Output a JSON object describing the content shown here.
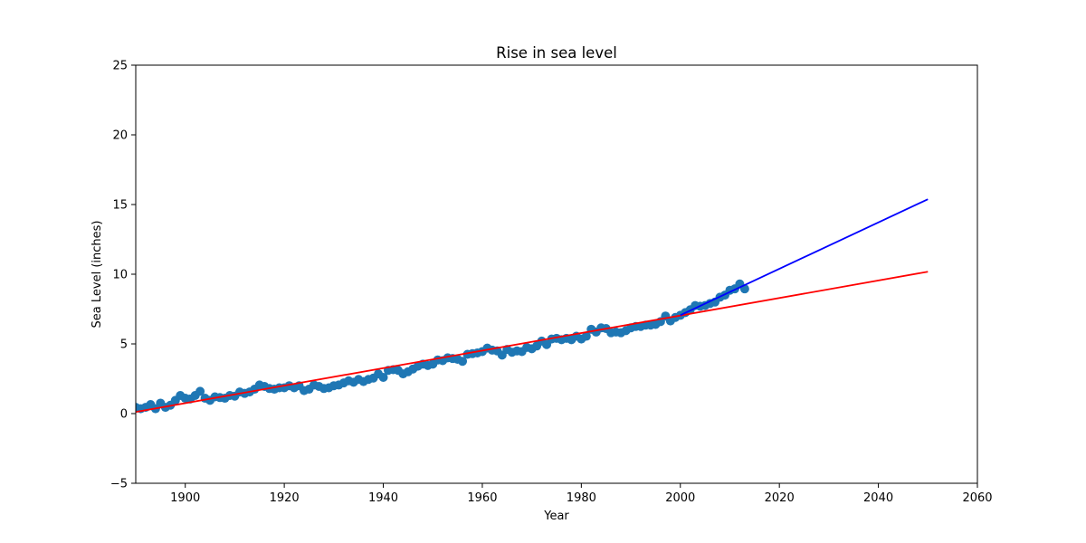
{
  "chart_data": {
    "type": "scatter",
    "title": "Rise in sea level",
    "xlabel": "Year",
    "ylabel": "Sea Level (inches)",
    "xlim": [
      1890,
      2060
    ],
    "ylim": [
      -5,
      25
    ],
    "x_ticks": [
      1900,
      1920,
      1940,
      1960,
      1980,
      2000,
      2020,
      2040,
      2060
    ],
    "y_ticks": [
      -5,
      0,
      5,
      10,
      15,
      20,
      25
    ],
    "grid": false,
    "legend": "none",
    "series": [
      {
        "kind": "scatter",
        "color": "#1f77b4",
        "points": [
          [
            1890,
            0.45
          ],
          [
            1891,
            0.35
          ],
          [
            1892,
            0.45
          ],
          [
            1893,
            0.65
          ],
          [
            1894,
            0.35
          ],
          [
            1895,
            0.75
          ],
          [
            1896,
            0.45
          ],
          [
            1897,
            0.6
          ],
          [
            1898,
            0.95
          ],
          [
            1899,
            1.3
          ],
          [
            1900,
            1.1
          ],
          [
            1901,
            1.05
          ],
          [
            1902,
            1.3
          ],
          [
            1903,
            1.6
          ],
          [
            1904,
            1.1
          ],
          [
            1905,
            0.95
          ],
          [
            1906,
            1.2
          ],
          [
            1907,
            1.15
          ],
          [
            1908,
            1.1
          ],
          [
            1909,
            1.3
          ],
          [
            1910,
            1.25
          ],
          [
            1911,
            1.55
          ],
          [
            1912,
            1.45
          ],
          [
            1913,
            1.55
          ],
          [
            1914,
            1.75
          ],
          [
            1915,
            2.05
          ],
          [
            1916,
            1.95
          ],
          [
            1917,
            1.8
          ],
          [
            1918,
            1.75
          ],
          [
            1919,
            1.85
          ],
          [
            1920,
            1.85
          ],
          [
            1921,
            2.0
          ],
          [
            1922,
            1.85
          ],
          [
            1923,
            2.0
          ],
          [
            1924,
            1.65
          ],
          [
            1925,
            1.75
          ],
          [
            1926,
            2.05
          ],
          [
            1927,
            1.95
          ],
          [
            1928,
            1.8
          ],
          [
            1929,
            1.85
          ],
          [
            1930,
            2.0
          ],
          [
            1931,
            2.05
          ],
          [
            1932,
            2.2
          ],
          [
            1933,
            2.35
          ],
          [
            1934,
            2.25
          ],
          [
            1935,
            2.45
          ],
          [
            1936,
            2.3
          ],
          [
            1937,
            2.45
          ],
          [
            1938,
            2.55
          ],
          [
            1939,
            2.85
          ],
          [
            1940,
            2.6
          ],
          [
            1941,
            3.1
          ],
          [
            1942,
            3.15
          ],
          [
            1943,
            3.1
          ],
          [
            1944,
            2.85
          ],
          [
            1945,
            3.0
          ],
          [
            1946,
            3.2
          ],
          [
            1947,
            3.4
          ],
          [
            1948,
            3.55
          ],
          [
            1949,
            3.45
          ],
          [
            1950,
            3.55
          ],
          [
            1951,
            3.85
          ],
          [
            1952,
            3.8
          ],
          [
            1953,
            4.0
          ],
          [
            1954,
            3.95
          ],
          [
            1955,
            3.9
          ],
          [
            1956,
            3.75
          ],
          [
            1957,
            4.25
          ],
          [
            1958,
            4.3
          ],
          [
            1959,
            4.35
          ],
          [
            1960,
            4.45
          ],
          [
            1961,
            4.7
          ],
          [
            1962,
            4.55
          ],
          [
            1963,
            4.5
          ],
          [
            1964,
            4.2
          ],
          [
            1965,
            4.6
          ],
          [
            1966,
            4.4
          ],
          [
            1967,
            4.5
          ],
          [
            1968,
            4.45
          ],
          [
            1969,
            4.75
          ],
          [
            1970,
            4.65
          ],
          [
            1971,
            4.85
          ],
          [
            1972,
            5.2
          ],
          [
            1973,
            4.95
          ],
          [
            1974,
            5.35
          ],
          [
            1975,
            5.4
          ],
          [
            1976,
            5.3
          ],
          [
            1977,
            5.4
          ],
          [
            1978,
            5.3
          ],
          [
            1979,
            5.55
          ],
          [
            1980,
            5.35
          ],
          [
            1981,
            5.55
          ],
          [
            1982,
            6.05
          ],
          [
            1983,
            5.85
          ],
          [
            1984,
            6.15
          ],
          [
            1985,
            6.1
          ],
          [
            1986,
            5.8
          ],
          [
            1987,
            5.85
          ],
          [
            1988,
            5.8
          ],
          [
            1989,
            5.95
          ],
          [
            1990,
            6.15
          ],
          [
            1991,
            6.25
          ],
          [
            1992,
            6.25
          ],
          [
            1993,
            6.35
          ],
          [
            1994,
            6.35
          ],
          [
            1995,
            6.4
          ],
          [
            1996,
            6.6
          ],
          [
            1997,
            7.0
          ],
          [
            1998,
            6.65
          ],
          [
            1999,
            6.9
          ],
          [
            2000,
            7.05
          ],
          [
            2001,
            7.25
          ],
          [
            2002,
            7.45
          ],
          [
            2003,
            7.75
          ],
          [
            2004,
            7.7
          ],
          [
            2005,
            7.75
          ],
          [
            2006,
            7.9
          ],
          [
            2007,
            8.0
          ],
          [
            2008,
            8.35
          ],
          [
            2009,
            8.5
          ],
          [
            2010,
            8.85
          ],
          [
            2011,
            8.95
          ],
          [
            2012,
            9.3
          ],
          [
            2013,
            8.95
          ]
        ]
      },
      {
        "kind": "line",
        "color": "#ff0000",
        "points": [
          [
            1880,
            -0.51
          ],
          [
            2050,
            10.18
          ]
        ]
      },
      {
        "kind": "line",
        "color": "#0000ff",
        "points": [
          [
            2000,
            7.06
          ],
          [
            2050,
            15.38
          ]
        ]
      }
    ]
  }
}
